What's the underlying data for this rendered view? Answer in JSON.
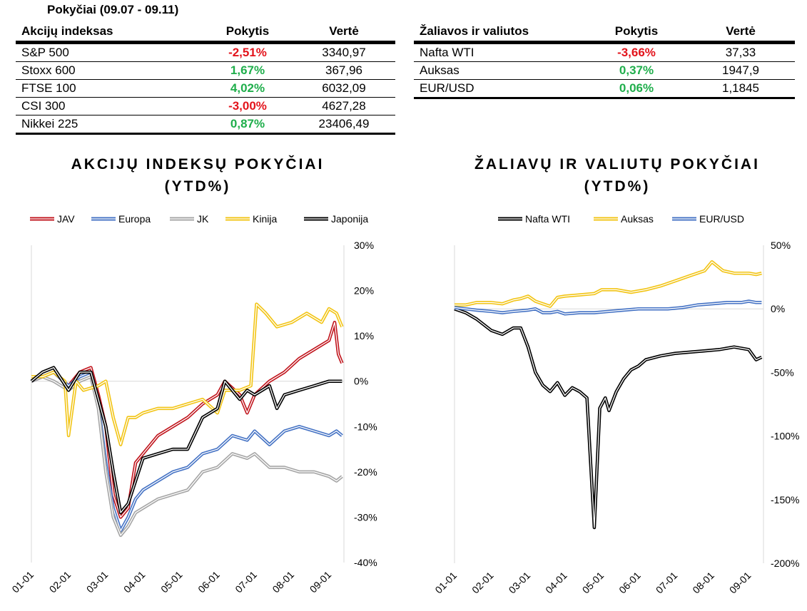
{
  "period_title": "Pokyčiai (09.07 - 09.11)",
  "colors": {
    "negative": "#e3141c",
    "positive": "#1fae4b"
  },
  "equity_table": {
    "headers": [
      "Akcijų indeksas",
      "Pokytis",
      "Vertė"
    ],
    "rows": [
      {
        "name": "S&P 500",
        "change": "-2,51%",
        "value": "3340,97",
        "sign": "neg"
      },
      {
        "name": "Stoxx 600",
        "change": "1,67%",
        "value": "367,96",
        "sign": "pos"
      },
      {
        "name": "FTSE 100",
        "change": "4,02%",
        "value": "6032,09",
        "sign": "pos"
      },
      {
        "name": "CSI 300",
        "change": "-3,00%",
        "value": "4627,28",
        "sign": "neg"
      },
      {
        "name": "Nikkei 225",
        "change": "0,87%",
        "value": "23406,49",
        "sign": "pos"
      }
    ]
  },
  "commodity_table": {
    "headers": [
      "Žaliavos ir valiutos",
      "Pokytis",
      "Vertė"
    ],
    "rows": [
      {
        "name": "Nafta WTI",
        "change": "-3,66%",
        "value": "37,33",
        "sign": "neg"
      },
      {
        "name": "Auksas",
        "change": "0,37%",
        "value": "1947,9",
        "sign": "pos"
      },
      {
        "name": "EUR/USD",
        "change": "0,06%",
        "value": "1,1845",
        "sign": "pos"
      }
    ]
  },
  "chart_data": [
    {
      "type": "line",
      "title_line1": "AKCIJŲ INDEKSŲ POKYČIAI",
      "title_line2": "(YTD%)",
      "x_ticks": [
        "01-01",
        "02-01",
        "03-01",
        "04-01",
        "05-01",
        "06-01",
        "07-01",
        "08-01",
        "09-01"
      ],
      "x_range": [
        0,
        8.4
      ],
      "ylim": [
        -40,
        30
      ],
      "y_ticks": [
        30,
        20,
        10,
        0,
        -10,
        -20,
        -30,
        -40
      ],
      "y_tick_labels": [
        "30%",
        "20%",
        "10%",
        "0%",
        "-10%",
        "-20%",
        "-30%",
        "-40%"
      ],
      "legend_position": "top",
      "series": [
        {
          "name": "JAV",
          "color": "#c0141c",
          "points": [
            [
              0,
              0
            ],
            [
              0.3,
              1
            ],
            [
              0.6,
              2
            ],
            [
              1,
              -1
            ],
            [
              1.3,
              2
            ],
            [
              1.6,
              3
            ],
            [
              1.8,
              -3
            ],
            [
              2,
              -10
            ],
            [
              2.2,
              -25
            ],
            [
              2.4,
              -30
            ],
            [
              2.6,
              -28
            ],
            [
              2.8,
              -18
            ],
            [
              3,
              -16
            ],
            [
              3.4,
              -12
            ],
            [
              3.8,
              -10
            ],
            [
              4.2,
              -8
            ],
            [
              4.6,
              -5
            ],
            [
              5,
              -3
            ],
            [
              5.2,
              0
            ],
            [
              5.6,
              -3
            ],
            [
              5.8,
              -7
            ],
            [
              6,
              -3
            ],
            [
              6.4,
              0
            ],
            [
              6.8,
              2
            ],
            [
              7.2,
              5
            ],
            [
              7.6,
              7
            ],
            [
              8,
              9
            ],
            [
              8.15,
              13
            ],
            [
              8.25,
              6
            ],
            [
              8.35,
              4
            ]
          ]
        },
        {
          "name": "Europa",
          "color": "#4472c4",
          "points": [
            [
              0,
              0
            ],
            [
              0.3,
              1
            ],
            [
              0.6,
              2
            ],
            [
              1,
              -1
            ],
            [
              1.3,
              1
            ],
            [
              1.6,
              2
            ],
            [
              1.8,
              -5
            ],
            [
              2,
              -18
            ],
            [
              2.2,
              -28
            ],
            [
              2.4,
              -33
            ],
            [
              2.6,
              -30
            ],
            [
              2.8,
              -26
            ],
            [
              3,
              -24
            ],
            [
              3.4,
              -22
            ],
            [
              3.8,
              -20
            ],
            [
              4.2,
              -19
            ],
            [
              4.6,
              -16
            ],
            [
              5,
              -15
            ],
            [
              5.4,
              -12
            ],
            [
              5.8,
              -13
            ],
            [
              6,
              -11
            ],
            [
              6.4,
              -14
            ],
            [
              6.8,
              -11
            ],
            [
              7.2,
              -10
            ],
            [
              7.6,
              -11
            ],
            [
              8,
              -12
            ],
            [
              8.2,
              -11
            ],
            [
              8.35,
              -12
            ]
          ]
        },
        {
          "name": "JK",
          "color": "#a5a5a5",
          "points": [
            [
              0,
              0
            ],
            [
              0.3,
              1
            ],
            [
              0.6,
              0
            ],
            [
              1,
              -2
            ],
            [
              1.3,
              0
            ],
            [
              1.6,
              1
            ],
            [
              1.8,
              -6
            ],
            [
              2,
              -20
            ],
            [
              2.2,
              -30
            ],
            [
              2.4,
              -34
            ],
            [
              2.6,
              -32
            ],
            [
              2.8,
              -29
            ],
            [
              3,
              -28
            ],
            [
              3.4,
              -26
            ],
            [
              3.8,
              -25
            ],
            [
              4.2,
              -24
            ],
            [
              4.6,
              -20
            ],
            [
              5,
              -19
            ],
            [
              5.4,
              -16
            ],
            [
              5.8,
              -17
            ],
            [
              6,
              -16
            ],
            [
              6.4,
              -19
            ],
            [
              6.8,
              -19
            ],
            [
              7.2,
              -20
            ],
            [
              7.6,
              -20
            ],
            [
              8,
              -21
            ],
            [
              8.2,
              -22
            ],
            [
              8.35,
              -21
            ]
          ]
        },
        {
          "name": "Kinija",
          "color": "#f2c414",
          "points": [
            [
              0,
              1
            ],
            [
              0.3,
              1
            ],
            [
              0.6,
              2
            ],
            [
              0.9,
              0
            ],
            [
              1,
              -12
            ],
            [
              1.2,
              0
            ],
            [
              1.4,
              -2
            ],
            [
              1.8,
              -1
            ],
            [
              2,
              0
            ],
            [
              2.2,
              -8
            ],
            [
              2.4,
              -14
            ],
            [
              2.6,
              -8
            ],
            [
              2.8,
              -8
            ],
            [
              3,
              -7
            ],
            [
              3.4,
              -6
            ],
            [
              3.8,
              -6
            ],
            [
              4.2,
              -5
            ],
            [
              4.6,
              -4
            ],
            [
              5,
              -7
            ],
            [
              5.2,
              -2
            ],
            [
              5.6,
              -2
            ],
            [
              5.9,
              -1
            ],
            [
              6.05,
              17
            ],
            [
              6.3,
              15
            ],
            [
              6.6,
              12
            ],
            [
              7,
              13
            ],
            [
              7.4,
              15
            ],
            [
              7.8,
              13
            ],
            [
              8,
              16
            ],
            [
              8.2,
              15
            ],
            [
              8.35,
              12
            ]
          ]
        },
        {
          "name": "Japonija",
          "color": "#000000",
          "points": [
            [
              0,
              0
            ],
            [
              0.3,
              2
            ],
            [
              0.6,
              3
            ],
            [
              1,
              -2
            ],
            [
              1.3,
              2
            ],
            [
              1.6,
              2
            ],
            [
              1.8,
              -4
            ],
            [
              2,
              -10
            ],
            [
              2.2,
              -20
            ],
            [
              2.4,
              -29
            ],
            [
              2.6,
              -27
            ],
            [
              2.8,
              -22
            ],
            [
              3,
              -17
            ],
            [
              3.4,
              -16
            ],
            [
              3.8,
              -15
            ],
            [
              4.2,
              -15
            ],
            [
              4.6,
              -8
            ],
            [
              5,
              -6
            ],
            [
              5.2,
              0
            ],
            [
              5.6,
              -4
            ],
            [
              5.8,
              -2
            ],
            [
              6,
              -3
            ],
            [
              6.4,
              -1
            ],
            [
              6.6,
              -6
            ],
            [
              6.8,
              -3
            ],
            [
              7.2,
              -2
            ],
            [
              7.6,
              -1
            ],
            [
              8,
              0
            ],
            [
              8.2,
              0
            ],
            [
              8.35,
              0
            ]
          ]
        }
      ]
    },
    {
      "type": "line",
      "title_line1": "ŽALIAVŲ IR VALIUTŲ POKYČIAI",
      "title_line2": "(YTD%)",
      "x_ticks": [
        "01-01",
        "02-01",
        "03-01",
        "04-01",
        "05-01",
        "06-01",
        "07-01",
        "08-01",
        "09-01"
      ],
      "x_range": [
        0,
        8.4
      ],
      "ylim": [
        -200,
        50
      ],
      "y_ticks": [
        50,
        0,
        -50,
        -100,
        -150,
        -200
      ],
      "y_tick_labels": [
        "50%",
        "0%",
        "-50%",
        "-100%",
        "-150%",
        "-200%"
      ],
      "legend_position": "top",
      "series": [
        {
          "name": "Nafta WTI",
          "color": "#000000",
          "points": [
            [
              0,
              0
            ],
            [
              0.3,
              -3
            ],
            [
              0.6,
              -8
            ],
            [
              1,
              -17
            ],
            [
              1.3,
              -20
            ],
            [
              1.6,
              -15
            ],
            [
              1.8,
              -15
            ],
            [
              2,
              -30
            ],
            [
              2.2,
              -50
            ],
            [
              2.4,
              -60
            ],
            [
              2.6,
              -65
            ],
            [
              2.8,
              -58
            ],
            [
              3,
              -68
            ],
            [
              3.2,
              -62
            ],
            [
              3.4,
              -65
            ],
            [
              3.6,
              -70
            ],
            [
              3.8,
              -172
            ],
            [
              3.95,
              -78
            ],
            [
              4.1,
              -70
            ],
            [
              4.2,
              -80
            ],
            [
              4.4,
              -65
            ],
            [
              4.6,
              -55
            ],
            [
              4.8,
              -48
            ],
            [
              5,
              -45
            ],
            [
              5.2,
              -40
            ],
            [
              5.6,
              -37
            ],
            [
              6,
              -35
            ],
            [
              6.4,
              -34
            ],
            [
              6.8,
              -33
            ],
            [
              7.2,
              -32
            ],
            [
              7.6,
              -30
            ],
            [
              8,
              -32
            ],
            [
              8.2,
              -40
            ],
            [
              8.35,
              -38
            ]
          ]
        },
        {
          "name": "Auksas",
          "color": "#f2c414",
          "points": [
            [
              0,
              3
            ],
            [
              0.3,
              3
            ],
            [
              0.6,
              5
            ],
            [
              1,
              5
            ],
            [
              1.3,
              4
            ],
            [
              1.6,
              7
            ],
            [
              1.8,
              8
            ],
            [
              2,
              10
            ],
            [
              2.2,
              6
            ],
            [
              2.4,
              4
            ],
            [
              2.6,
              2
            ],
            [
              2.8,
              9
            ],
            [
              3,
              10
            ],
            [
              3.4,
              11
            ],
            [
              3.8,
              12
            ],
            [
              4,
              15
            ],
            [
              4.4,
              15
            ],
            [
              4.8,
              13
            ],
            [
              5.2,
              15
            ],
            [
              5.6,
              18
            ],
            [
              6,
              22
            ],
            [
              6.4,
              26
            ],
            [
              6.8,
              30
            ],
            [
              7,
              37
            ],
            [
              7.3,
              30
            ],
            [
              7.6,
              28
            ],
            [
              8,
              28
            ],
            [
              8.2,
              27
            ],
            [
              8.35,
              28
            ]
          ]
        },
        {
          "name": "EUR/USD",
          "color": "#4472c4",
          "points": [
            [
              0,
              1
            ],
            [
              0.3,
              0
            ],
            [
              0.6,
              -1
            ],
            [
              1,
              -2
            ],
            [
              1.3,
              -3
            ],
            [
              1.6,
              -2
            ],
            [
              2,
              -1
            ],
            [
              2.2,
              0
            ],
            [
              2.4,
              -3
            ],
            [
              2.6,
              -3
            ],
            [
              2.8,
              -2
            ],
            [
              3,
              -4
            ],
            [
              3.4,
              -3
            ],
            [
              3.8,
              -3
            ],
            [
              4.2,
              -2
            ],
            [
              4.6,
              -1
            ],
            [
              5,
              0
            ],
            [
              5.4,
              0
            ],
            [
              5.8,
              0
            ],
            [
              6.2,
              1
            ],
            [
              6.6,
              3
            ],
            [
              7,
              4
            ],
            [
              7.4,
              5
            ],
            [
              7.8,
              5
            ],
            [
              8,
              6
            ],
            [
              8.2,
              5
            ],
            [
              8.35,
              5
            ]
          ]
        }
      ]
    }
  ]
}
